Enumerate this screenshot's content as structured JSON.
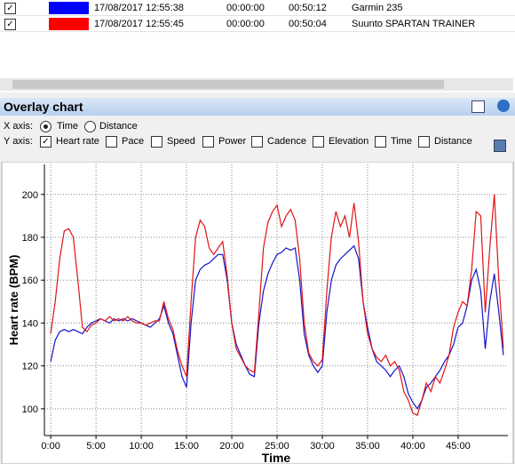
{
  "table": {
    "rows": [
      {
        "checked": true,
        "color": "#0000ff",
        "start": "17/08/2017 12:55:38",
        "offset": "00:00:00",
        "duration": "00:50:12",
        "name": "Garmin 235"
      },
      {
        "checked": true,
        "color": "#ff0000",
        "start": "17/08/2017 12:55:45",
        "offset": "00:00:00",
        "duration": "00:50:04",
        "name": "Suunto SPARTAN TRAINER"
      }
    ]
  },
  "panel": {
    "title": "Overlay chart",
    "x_axis_label": "X axis:",
    "x_options": [
      "Time",
      "Distance"
    ],
    "x_selected": 0,
    "y_axis_label": "Y axis:",
    "y_options": [
      "Heart rate",
      "Pace",
      "Speed",
      "Power",
      "Cadence",
      "Elevation",
      "Time",
      "Distance"
    ],
    "y_checked": [
      true,
      false,
      false,
      false,
      false,
      false,
      false,
      false
    ]
  },
  "chart_data": {
    "type": "line",
    "x_label": "Time",
    "y_label": "Heart rate (BPM)",
    "x": [
      0,
      0.5,
      1,
      1.5,
      2,
      2.5,
      3,
      3.5,
      4,
      4.5,
      5,
      5.5,
      6,
      6.5,
      7,
      7.5,
      8,
      8.5,
      9,
      9.5,
      10,
      10.5,
      11,
      11.5,
      12,
      12.5,
      13,
      13.5,
      14,
      14.5,
      15,
      15.5,
      16,
      16.5,
      17,
      17.5,
      18,
      18.5,
      19,
      19.5,
      20,
      20.5,
      21,
      21.5,
      22,
      22.5,
      23,
      23.5,
      24,
      24.5,
      25,
      25.5,
      26,
      26.5,
      27,
      27.5,
      28,
      28.5,
      29,
      29.5,
      30,
      30.5,
      31,
      31.5,
      32,
      32.5,
      33,
      33.5,
      34,
      34.5,
      35,
      35.5,
      36,
      36.5,
      37,
      37.5,
      38,
      38.5,
      39,
      39.5,
      40,
      40.5,
      41,
      41.5,
      42,
      42.5,
      43,
      43.5,
      44,
      44.5,
      45,
      45.5,
      46,
      46.5,
      47,
      47.5,
      48,
      48.5,
      49,
      49.5,
      50
    ],
    "series": [
      {
        "color": "#1414c8",
        "values": [
          122,
          132,
          136,
          137,
          136,
          137,
          136,
          135,
          138,
          140,
          141,
          142,
          141,
          140,
          142,
          141,
          142,
          141,
          142,
          141,
          140,
          139,
          138,
          140,
          142,
          148,
          140,
          135,
          125,
          115,
          110,
          140,
          160,
          165,
          167,
          168,
          170,
          172,
          172,
          160,
          140,
          130,
          125,
          120,
          116,
          115,
          140,
          155,
          163,
          168,
          172,
          173,
          175,
          174,
          175,
          160,
          135,
          125,
          120,
          117,
          120,
          145,
          160,
          167,
          170,
          172,
          174,
          176,
          170,
          150,
          138,
          128,
          122,
          120,
          118,
          115,
          118,
          120,
          115,
          107,
          103,
          100,
          104,
          110,
          112,
          115,
          118,
          122,
          125,
          130,
          138,
          140,
          148,
          160,
          165,
          155,
          128,
          150,
          163,
          145,
          125
        ]
      },
      {
        "color": "#e01414",
        "values": [
          135,
          150,
          170,
          183,
          184,
          180,
          160,
          138,
          136,
          139,
          140,
          142,
          141,
          143,
          141,
          142,
          141,
          143,
          141,
          140,
          140,
          139,
          140,
          141,
          141,
          150,
          142,
          137,
          127,
          120,
          115,
          150,
          180,
          188,
          185,
          175,
          172,
          175,
          178,
          162,
          140,
          128,
          124,
          120,
          118,
          117,
          145,
          175,
          187,
          192,
          195,
          185,
          190,
          193,
          188,
          170,
          140,
          126,
          122,
          120,
          123,
          155,
          180,
          192,
          185,
          190,
          180,
          196,
          178,
          150,
          135,
          128,
          124,
          122,
          125,
          120,
          122,
          118,
          108,
          104,
          98,
          97,
          104,
          112,
          108,
          115,
          112,
          118,
          125,
          138,
          145,
          150,
          148,
          165,
          192,
          190,
          145,
          175,
          200,
          160,
          128
        ]
      }
    ],
    "xlim": [
      -0.7,
      50.5
    ],
    "ylim": [
      87.5,
      214
    ],
    "xticks": [
      {
        "value": 0,
        "label": "0:00"
      },
      {
        "value": 5,
        "label": "5:00"
      },
      {
        "value": 10,
        "label": "10:00"
      },
      {
        "value": 15,
        "label": "15:00"
      },
      {
        "value": 20,
        "label": "20:00"
      },
      {
        "value": 25,
        "label": "25:00"
      },
      {
        "value": 30,
        "label": "30:00"
      },
      {
        "value": 35,
        "label": "35:00"
      },
      {
        "value": 40,
        "label": "40:00"
      },
      {
        "value": 45,
        "label": "45:00"
      }
    ],
    "yticks": [
      100,
      120,
      140,
      160,
      180,
      200
    ],
    "grid": true
  }
}
